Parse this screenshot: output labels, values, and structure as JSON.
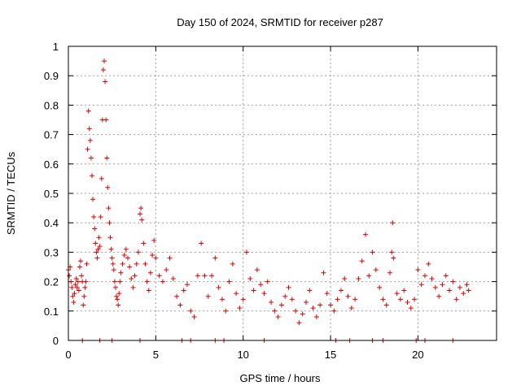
{
  "chart_data": {
    "type": "scatter",
    "title": "Day 150 of 2024, SRMTID for receiver p287",
    "xlabel": "GPS time / hours",
    "ylabel": "SRMTID / TECUs",
    "xlim": [
      0,
      24.5
    ],
    "ylim": [
      0,
      1
    ],
    "xticks": [
      0,
      5,
      10,
      15,
      20
    ],
    "xtick_labels": [
      "0",
      "5",
      "10",
      "15",
      "20"
    ],
    "yticks": [
      0,
      0.1,
      0.2,
      0.3,
      0.4,
      0.5,
      0.6,
      0.7,
      0.8,
      0.9,
      1
    ],
    "ytick_labels": [
      "0",
      "0.1",
      "0.2",
      "0.3",
      "0.4",
      "0.5",
      "0.6",
      "0.7",
      "0.8",
      "0.9",
      "1"
    ],
    "grid": true,
    "legend": "none",
    "marker": "plus",
    "color": "#e00000",
    "series": [
      {
        "name": "SRMTID",
        "points": [
          [
            0.0,
            0.24
          ],
          [
            0.05,
            0.22
          ],
          [
            0.1,
            0.25
          ],
          [
            0.15,
            0.2
          ],
          [
            0.2,
            0.18
          ],
          [
            0.25,
            0.15
          ],
          [
            0.3,
            0.13
          ],
          [
            0.35,
            0.16
          ],
          [
            0.4,
            0.19
          ],
          [
            0.45,
            0.21
          ],
          [
            0.5,
            0.18
          ],
          [
            0.55,
            0.2
          ],
          [
            0.6,
            0.17
          ],
          [
            0.65,
            0.25
          ],
          [
            0.7,
            0.27
          ],
          [
            0.75,
            0.22
          ],
          [
            0.8,
            0.2
          ],
          [
            0.85,
            0.12
          ],
          [
            0.9,
            0.15
          ],
          [
            0.95,
            0.18
          ],
          [
            1.0,
            0.2
          ],
          [
            1.05,
            0.26
          ],
          [
            1.1,
            0.65
          ],
          [
            1.15,
            0.78
          ],
          [
            1.2,
            0.72
          ],
          [
            1.25,
            0.68
          ],
          [
            1.3,
            0.62
          ],
          [
            1.35,
            0.56
          ],
          [
            1.4,
            0.48
          ],
          [
            1.45,
            0.42
          ],
          [
            1.5,
            0.38
          ],
          [
            1.55,
            0.33
          ],
          [
            1.6,
            0.3
          ],
          [
            1.65,
            0.28
          ],
          [
            1.7,
            0.31
          ],
          [
            1.75,
            0.35
          ],
          [
            1.8,
            0.32
          ],
          [
            1.85,
            0.42
          ],
          [
            1.9,
            0.55
          ],
          [
            1.95,
            0.75
          ],
          [
            2.0,
            0.92
          ],
          [
            2.05,
            0.95
          ],
          [
            2.1,
            0.88
          ],
          [
            2.15,
            0.75
          ],
          [
            2.2,
            0.62
          ],
          [
            2.25,
            0.52
          ],
          [
            2.3,
            0.45
          ],
          [
            2.35,
            0.4
          ],
          [
            2.4,
            0.35
          ],
          [
            2.45,
            0.31
          ],
          [
            2.5,
            0.28
          ],
          [
            2.55,
            0.26
          ],
          [
            2.6,
            0.24
          ],
          [
            2.65,
            0.2
          ],
          [
            2.7,
            0.18
          ],
          [
            2.75,
            0.15
          ],
          [
            2.8,
            0.14
          ],
          [
            2.85,
            0.12
          ],
          [
            2.9,
            0.16
          ],
          [
            2.95,
            0.2
          ],
          [
            3.0,
            0.23
          ],
          [
            3.1,
            0.26
          ],
          [
            3.2,
            0.29
          ],
          [
            3.3,
            0.31
          ],
          [
            3.4,
            0.28
          ],
          [
            3.5,
            0.25
          ],
          [
            3.6,
            0.21
          ],
          [
            3.7,
            0.18
          ],
          [
            3.8,
            0.22
          ],
          [
            3.9,
            0.26
          ],
          [
            4.0,
            0.3
          ],
          [
            4.1,
            0.43
          ],
          [
            4.15,
            0.45
          ],
          [
            4.2,
            0.41
          ],
          [
            4.3,
            0.33
          ],
          [
            4.4,
            0.26
          ],
          [
            4.5,
            0.2
          ],
          [
            4.6,
            0.17
          ],
          [
            4.7,
            0.23
          ],
          [
            4.8,
            0.29
          ],
          [
            4.9,
            0.34
          ],
          [
            5.0,
            0.28
          ],
          [
            5.2,
            0.22
          ],
          [
            5.4,
            0.2
          ],
          [
            5.6,
            0.24
          ],
          [
            5.8,
            0.28
          ],
          [
            6.0,
            0.21
          ],
          [
            6.2,
            0.15
          ],
          [
            6.4,
            0.12
          ],
          [
            6.6,
            0.17
          ],
          [
            6.8,
            0.19
          ],
          [
            7.0,
            0.1
          ],
          [
            7.2,
            0.08
          ],
          [
            7.4,
            0.22
          ],
          [
            7.6,
            0.33
          ],
          [
            7.8,
            0.22
          ],
          [
            8.0,
            0.15
          ],
          [
            8.2,
            0.22
          ],
          [
            8.4,
            0.28
          ],
          [
            8.6,
            0.18
          ],
          [
            8.8,
            0.14
          ],
          [
            9.0,
            0.1
          ],
          [
            9.2,
            0.2
          ],
          [
            9.4,
            0.26
          ],
          [
            9.6,
            0.16
          ],
          [
            9.8,
            0.11
          ],
          [
            10.0,
            0.14
          ],
          [
            10.2,
            0.3
          ],
          [
            10.4,
            0.21
          ],
          [
            10.6,
            0.17
          ],
          [
            10.8,
            0.24
          ],
          [
            11.0,
            0.19
          ],
          [
            11.2,
            0.16
          ],
          [
            11.4,
            0.2
          ],
          [
            11.6,
            0.13
          ],
          [
            11.8,
            0.1
          ],
          [
            12.0,
            0.08
          ],
          [
            12.2,
            0.12
          ],
          [
            12.4,
            0.15
          ],
          [
            12.6,
            0.18
          ],
          [
            12.8,
            0.14
          ],
          [
            13.0,
            0.1
          ],
          [
            13.2,
            0.06
          ],
          [
            13.4,
            0.09
          ],
          [
            13.6,
            0.13
          ],
          [
            13.8,
            0.17
          ],
          [
            14.0,
            0.11
          ],
          [
            14.2,
            0.08
          ],
          [
            14.4,
            0.12
          ],
          [
            14.6,
            0.23
          ],
          [
            14.8,
            0.16
          ],
          [
            15.0,
            0.12
          ],
          [
            15.2,
            0.1
          ],
          [
            15.4,
            0.14
          ],
          [
            15.6,
            0.17
          ],
          [
            15.8,
            0.21
          ],
          [
            16.0,
            0.15
          ],
          [
            16.2,
            0.11
          ],
          [
            16.4,
            0.14
          ],
          [
            16.6,
            0.21
          ],
          [
            16.8,
            0.27
          ],
          [
            17.0,
            0.36
          ],
          [
            17.2,
            0.22
          ],
          [
            17.4,
            0.3
          ],
          [
            17.6,
            0.24
          ],
          [
            17.8,
            0.18
          ],
          [
            18.0,
            0.14
          ],
          [
            18.2,
            0.12
          ],
          [
            18.4,
            0.23
          ],
          [
            18.5,
            0.3
          ],
          [
            18.55,
            0.4
          ],
          [
            18.6,
            0.28
          ],
          [
            18.8,
            0.16
          ],
          [
            19.0,
            0.14
          ],
          [
            19.2,
            0.17
          ],
          [
            19.4,
            0.13
          ],
          [
            19.6,
            0.11
          ],
          [
            19.8,
            0.14
          ],
          [
            20.0,
            0.24
          ],
          [
            20.2,
            0.19
          ],
          [
            20.4,
            0.22
          ],
          [
            20.6,
            0.26
          ],
          [
            20.8,
            0.21
          ],
          [
            21.0,
            0.18
          ],
          [
            21.2,
            0.15
          ],
          [
            21.4,
            0.19
          ],
          [
            21.6,
            0.22
          ],
          [
            21.8,
            0.17
          ],
          [
            22.0,
            0.2
          ],
          [
            22.2,
            0.14
          ],
          [
            22.4,
            0.18
          ],
          [
            22.6,
            0.16
          ],
          [
            22.8,
            0.19
          ],
          [
            22.9,
            0.17
          ],
          [
            0.8,
            0.0
          ],
          [
            1.8,
            0.0
          ],
          [
            2.5,
            0.0
          ],
          [
            4.1,
            0.0
          ],
          [
            6.5,
            0.0
          ],
          [
            7.0,
            0.0
          ],
          [
            8.4,
            0.0
          ],
          [
            8.9,
            0.0
          ],
          [
            11.2,
            0.0
          ],
          [
            15.3,
            0.0
          ],
          [
            16.1,
            0.0
          ],
          [
            17.4,
            0.0
          ],
          [
            18.0,
            0.0
          ],
          [
            19.9,
            0.0
          ],
          [
            20.4,
            0.0
          ],
          [
            22.0,
            0.0
          ]
        ]
      }
    ]
  }
}
